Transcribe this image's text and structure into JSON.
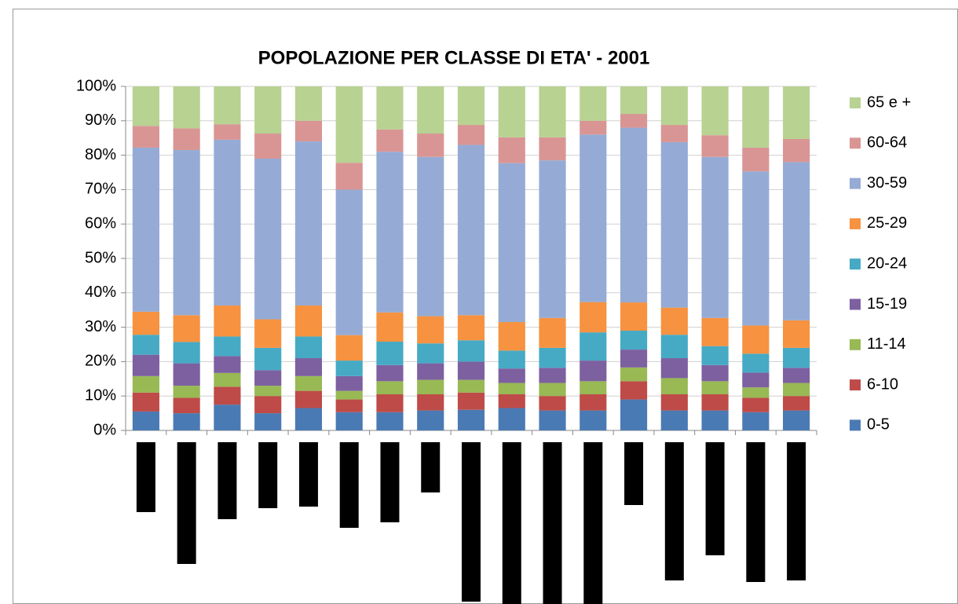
{
  "chart_data": {
    "type": "bar",
    "stacked": true,
    "title": "POPOLAZIONE PER CLASSE DI ETA' - 2001",
    "categories": [
      null,
      null,
      null,
      null,
      null,
      null,
      null,
      null,
      null,
      null,
      null,
      null,
      null,
      null,
      null,
      null,
      null
    ],
    "ylim": [
      0,
      100
    ],
    "yticks": [
      {
        "value": 0,
        "label": "0%"
      },
      {
        "value": 10,
        "label": "10%"
      },
      {
        "value": 20,
        "label": "20%"
      },
      {
        "value": 30,
        "label": "30%"
      },
      {
        "value": 40,
        "label": "40%"
      },
      {
        "value": 50,
        "label": "50%"
      },
      {
        "value": 60,
        "label": "60%"
      },
      {
        "value": 70,
        "label": "70%"
      },
      {
        "value": 80,
        "label": "80%"
      },
      {
        "value": 90,
        "label": "90%"
      },
      {
        "value": 100,
        "label": "100%"
      }
    ],
    "grid": true,
    "legend": "right",
    "series": [
      {
        "name": "0-5",
        "color": "#4a7ab4",
        "values": [
          5.5,
          5,
          7.5,
          5,
          6.5,
          5.3,
          5.3,
          5.8,
          6,
          6.5,
          5.8,
          5.8,
          9,
          5.8,
          5.8,
          5.3,
          5.8
        ]
      },
      {
        "name": "6-10",
        "color": "#be4b48",
        "values": [
          5.5,
          4.5,
          5.2,
          5,
          5,
          3.7,
          5.2,
          4.7,
          5,
          4,
          4.2,
          4.7,
          5.3,
          4.7,
          4.7,
          4.2,
          4.2
        ]
      },
      {
        "name": "11-14",
        "color": "#98b954",
        "values": [
          4.8,
          3.5,
          4,
          3,
          4.3,
          2.5,
          3.8,
          4.2,
          3.7,
          3.3,
          3.8,
          3.8,
          4,
          4.7,
          3.8,
          3,
          3.8
        ]
      },
      {
        "name": "15-19",
        "color": "#7d60a0",
        "values": [
          6.2,
          6.5,
          4.9,
          4.5,
          5.2,
          4.3,
          4.7,
          4.8,
          5.3,
          4.2,
          4.4,
          6,
          5.2,
          5.8,
          4.7,
          4.3,
          4.4
        ]
      },
      {
        "name": "20-24",
        "color": "#46aac5",
        "values": [
          5.8,
          6.2,
          5.7,
          6.5,
          6.3,
          4.5,
          6.8,
          5.8,
          6.2,
          5.2,
          5.8,
          8.2,
          5.5,
          6.8,
          5.5,
          5.5,
          5.8
        ]
      },
      {
        "name": "25-29",
        "color": "#f69240",
        "values": [
          6.7,
          7.8,
          9,
          8.3,
          9,
          7.4,
          8.5,
          7.9,
          7.3,
          8.3,
          8.7,
          8.8,
          8.2,
          7.9,
          8.2,
          8.2,
          8
        ]
      },
      {
        "name": "30-59",
        "color": "#95abd5",
        "values": [
          47.7,
          48,
          48.2,
          46.7,
          47.7,
          42.3,
          46.7,
          46.3,
          49.5,
          46.2,
          45.8,
          48.7,
          50.8,
          48.1,
          46.8,
          44.8,
          46
        ]
      },
      {
        "name": "60-64",
        "color": "#d99594",
        "values": [
          6.3,
          6.3,
          4.5,
          7.3,
          6,
          7.8,
          6.5,
          6.8,
          5.8,
          7.5,
          6.7,
          4,
          4,
          5,
          6.3,
          6.9,
          6.7
        ]
      },
      {
        "name": "65 e +",
        "color": "#b8d292",
        "values": [
          11.5,
          12.2,
          11,
          13.7,
          10,
          22.2,
          12.5,
          13.7,
          11.2,
          14.8,
          14.8,
          10,
          8,
          11.2,
          14.2,
          17.8,
          15.3
        ]
      }
    ]
  }
}
